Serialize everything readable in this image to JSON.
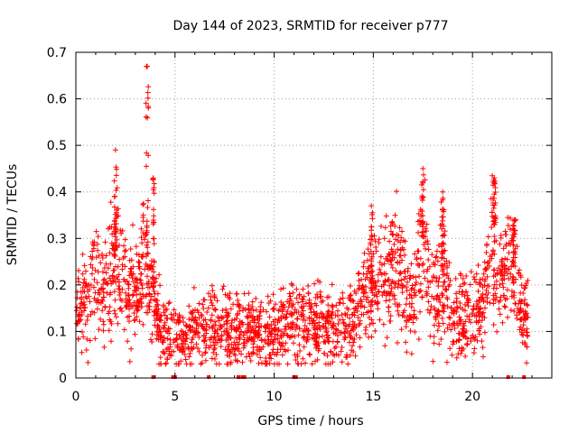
{
  "chart_data": {
    "type": "scatter",
    "title": "Day 144 of 2023, SRMTID for receiver p777",
    "xlabel": "GPS time / hours",
    "ylabel": "SRMTID / TECUs",
    "xlim": [
      0,
      24
    ],
    "ylim": [
      0,
      0.7
    ],
    "xticks": [
      0,
      5,
      10,
      15,
      20
    ],
    "yticks": [
      0,
      0.1,
      0.2,
      0.3,
      0.4,
      0.5,
      0.6,
      0.7
    ],
    "xtick_labels": [
      "0",
      "5",
      "10",
      "15",
      "20"
    ],
    "ytick_labels": [
      "0",
      "0.1",
      "0.2",
      "0.3",
      "0.4",
      "0.5",
      "0.6",
      "0.7"
    ],
    "grid": true,
    "marker": "+",
    "color": "#ff0000",
    "trend": [
      {
        "x": 0.0,
        "y": 0.16
      },
      {
        "x": 0.5,
        "y": 0.17
      },
      {
        "x": 1.0,
        "y": 0.21
      },
      {
        "x": 1.5,
        "y": 0.2
      },
      {
        "x": 2.0,
        "y": 0.26
      },
      {
        "x": 2.5,
        "y": 0.2
      },
      {
        "x": 3.0,
        "y": 0.18
      },
      {
        "x": 3.5,
        "y": 0.24
      },
      {
        "x": 4.0,
        "y": 0.17
      },
      {
        "x": 4.3,
        "y": 0.09
      },
      {
        "x": 5.0,
        "y": 0.09
      },
      {
        "x": 6.0,
        "y": 0.1
      },
      {
        "x": 7.0,
        "y": 0.11
      },
      {
        "x": 8.0,
        "y": 0.1
      },
      {
        "x": 9.0,
        "y": 0.1
      },
      {
        "x": 10.0,
        "y": 0.1
      },
      {
        "x": 11.0,
        "y": 0.12
      },
      {
        "x": 12.0,
        "y": 0.12
      },
      {
        "x": 13.0,
        "y": 0.11
      },
      {
        "x": 14.0,
        "y": 0.12
      },
      {
        "x": 14.8,
        "y": 0.2
      },
      {
        "x": 15.5,
        "y": 0.19
      },
      {
        "x": 16.0,
        "y": 0.24
      },
      {
        "x": 16.5,
        "y": 0.22
      },
      {
        "x": 17.0,
        "y": 0.14
      },
      {
        "x": 17.5,
        "y": 0.3
      },
      {
        "x": 18.0,
        "y": 0.17
      },
      {
        "x": 18.5,
        "y": 0.22
      },
      {
        "x": 19.0,
        "y": 0.11
      },
      {
        "x": 19.5,
        "y": 0.13
      },
      {
        "x": 20.0,
        "y": 0.13
      },
      {
        "x": 20.5,
        "y": 0.14
      },
      {
        "x": 21.0,
        "y": 0.28
      },
      {
        "x": 21.5,
        "y": 0.2
      },
      {
        "x": 22.0,
        "y": 0.25
      },
      {
        "x": 22.5,
        "y": 0.14
      },
      {
        "x": 22.8,
        "y": 0.12
      }
    ],
    "peaks": [
      {
        "x": 2.0,
        "y": 0.49
      },
      {
        "x": 3.6,
        "y": 0.67
      },
      {
        "x": 3.9,
        "y": 0.43
      },
      {
        "x": 14.9,
        "y": 0.37
      },
      {
        "x": 17.5,
        "y": 0.45
      },
      {
        "x": 18.5,
        "y": 0.4
      },
      {
        "x": 21.1,
        "y": 0.43
      },
      {
        "x": 22.1,
        "y": 0.34
      }
    ],
    "zero_markers": [
      3.9,
      4.9,
      5.0,
      6.7,
      8.2,
      8.4,
      8.5,
      11.0,
      11.1,
      21.8,
      22.6
    ]
  }
}
